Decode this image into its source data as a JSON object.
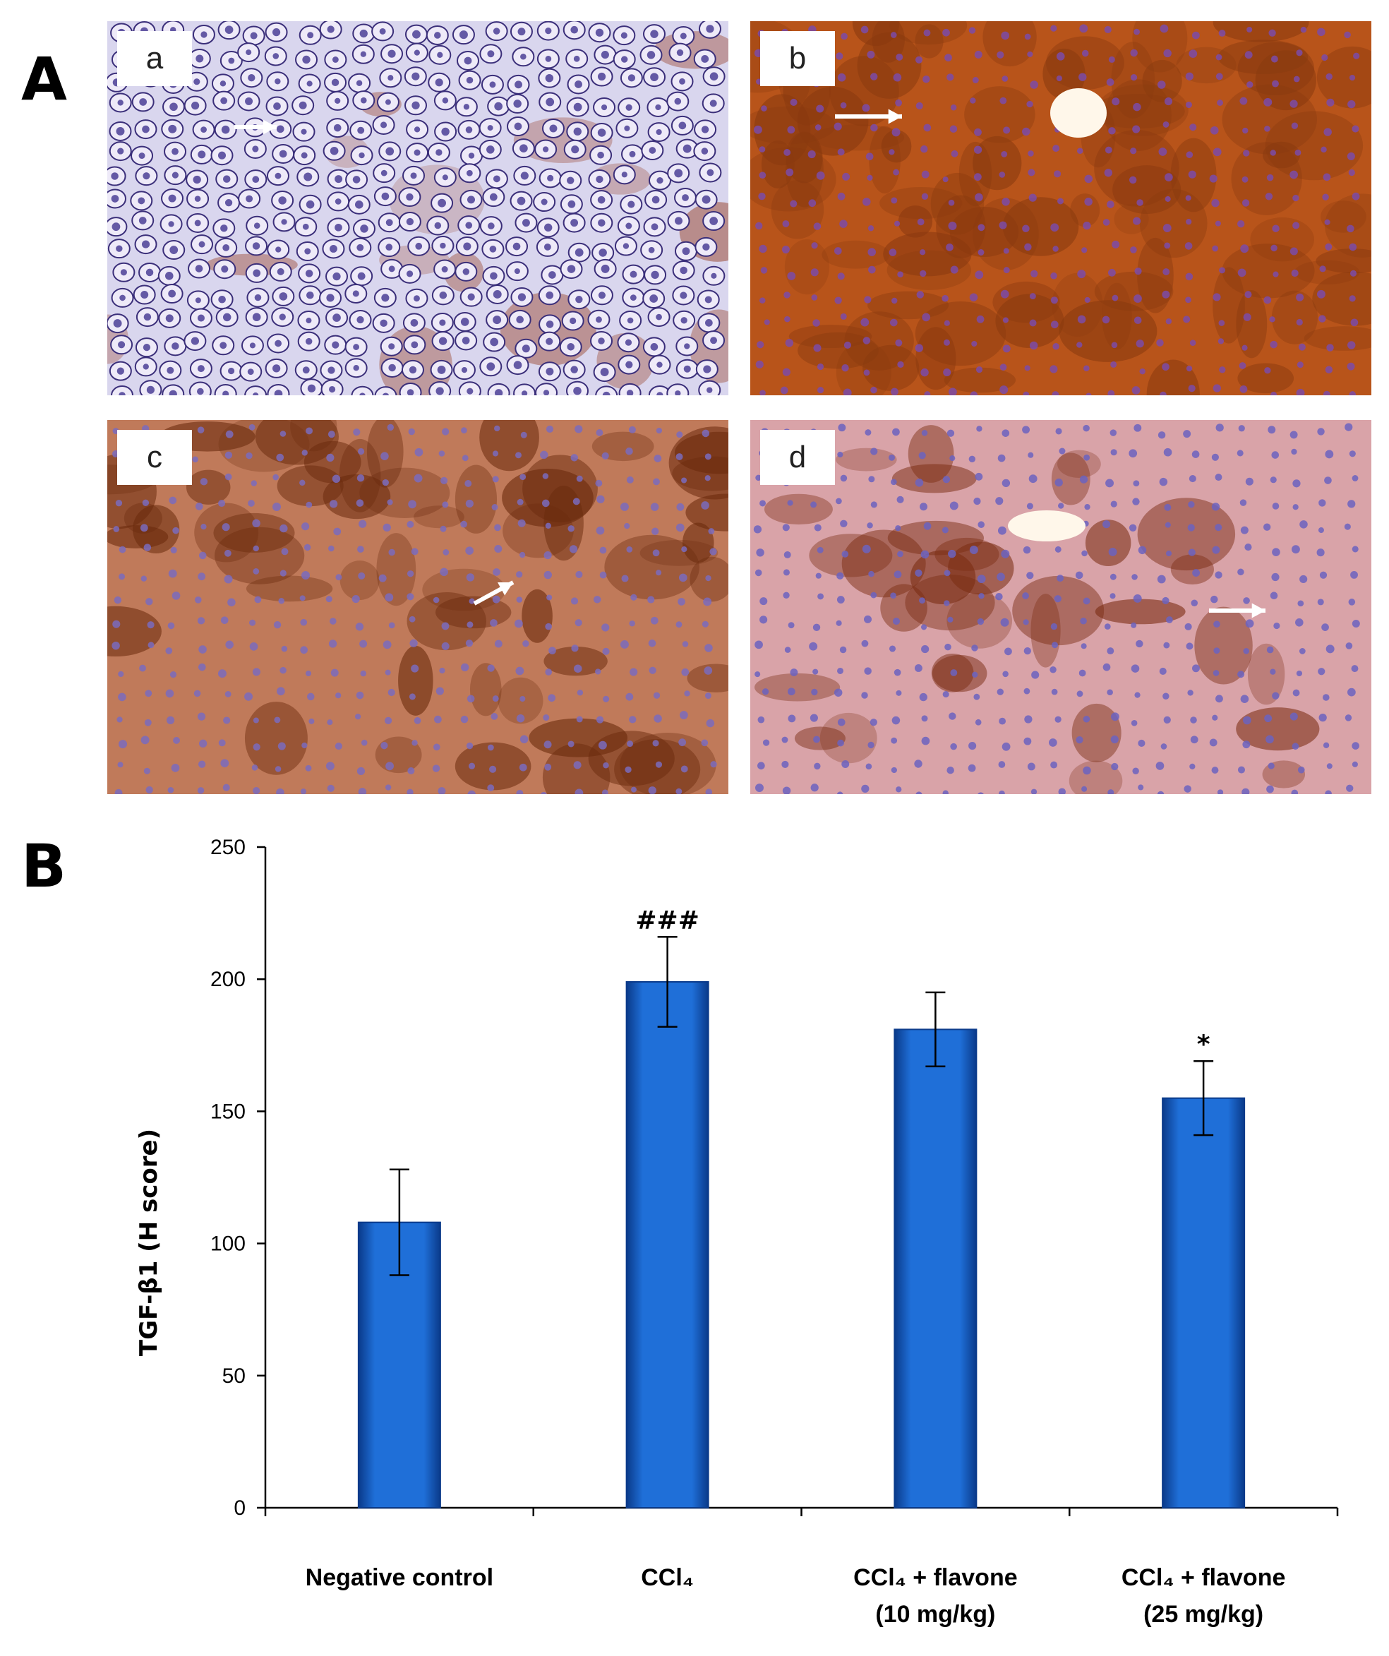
{
  "panels": {
    "A": "A",
    "B": "B"
  },
  "micrographs": [
    {
      "label": "a",
      "stain": "light",
      "colors": {
        "base": "#d9d6ee",
        "cell": "#4b3f97",
        "accent": "#a25a4a"
      }
    },
    {
      "label": "b",
      "stain": "heavy",
      "colors": {
        "base": "#b8541a",
        "cell": "#7b4ba8",
        "accent": "#8a3a0f"
      }
    },
    {
      "label": "c",
      "stain": "medium",
      "colors": {
        "base": "#c07a5a",
        "cell": "#7a6bbd",
        "accent": "#6a2a0c"
      }
    },
    {
      "label": "d",
      "stain": "moderate",
      "colors": {
        "base": "#d9a3a8",
        "cell": "#6b63c0",
        "accent": "#7a2c12"
      }
    }
  ],
  "chart_data": {
    "type": "bar",
    "categories": [
      [
        "Negative control"
      ],
      [
        "CCl₄"
      ],
      [
        "CCl₄ + flavone",
        "(10 mg/kg)"
      ],
      [
        "CCl₄ + flavone",
        "(25 mg/kg)"
      ]
    ],
    "values": [
      108,
      199,
      181,
      155
    ],
    "errors": [
      20,
      17,
      14,
      14
    ],
    "annotations": [
      "",
      "###",
      "",
      "*"
    ],
    "ylabel": "TGF-β1 (H score)",
    "ylim": [
      0,
      250
    ],
    "yticks": [
      "0",
      "50",
      "100",
      "150",
      "200",
      "250"
    ],
    "grid": false,
    "colors": {
      "bar": "#1f6fd8",
      "bar_edge": "#0a3a8a"
    }
  }
}
